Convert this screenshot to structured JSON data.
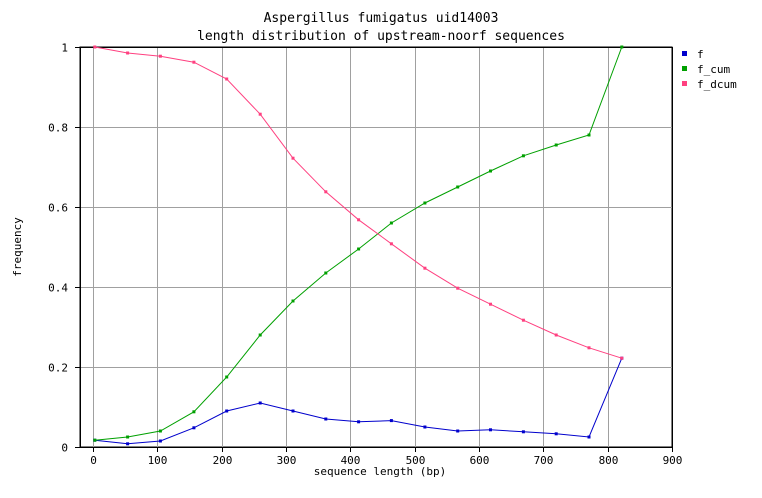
{
  "chart_data": {
    "type": "line",
    "title": "Aspergillus fumigatus uid14003",
    "subtitle": "length distribution of upstream-noorf sequences",
    "xlabel": "sequence length (bp)",
    "ylabel": "frequency",
    "xlim": [
      -20,
      900
    ],
    "ylim": [
      0,
      1
    ],
    "xticks": [
      0,
      100,
      200,
      300,
      400,
      500,
      600,
      700,
      800,
      900
    ],
    "yticks": [
      0,
      0.2,
      0.4,
      0.6,
      0.8,
      1
    ],
    "ytick_labels": [
      "0",
      "0.2",
      "0.4",
      "0.6",
      "0.8",
      "1"
    ],
    "grid": true,
    "legend_position": "top-right",
    "x": [
      3,
      54,
      105,
      157,
      208,
      260,
      311,
      362,
      413,
      464,
      516,
      567,
      618,
      669,
      720,
      771,
      822
    ],
    "series": [
      {
        "name": "f",
        "color": "#0000cc",
        "values": [
          0.017,
          0.008,
          0.015,
          0.048,
          0.09,
          0.11,
          0.09,
          0.07,
          0.063,
          0.066,
          0.05,
          0.04,
          0.043,
          0.038,
          0.033,
          0.025,
          0.222
        ]
      },
      {
        "name": "f_cum",
        "color": "#00a000",
        "values": [
          0.017,
          0.025,
          0.04,
          0.088,
          0.175,
          0.28,
          0.365,
          0.435,
          0.495,
          0.56,
          0.61,
          0.65,
          0.69,
          0.728,
          0.755,
          0.78,
          1.0
        ]
      },
      {
        "name": "f_dcum",
        "color": "#ff4080",
        "values": [
          1.0,
          0.985,
          0.977,
          0.962,
          0.92,
          0.832,
          0.722,
          0.638,
          0.568,
          0.508,
          0.447,
          0.397,
          0.357,
          0.317,
          0.28,
          0.248,
          0.222
        ]
      }
    ]
  }
}
